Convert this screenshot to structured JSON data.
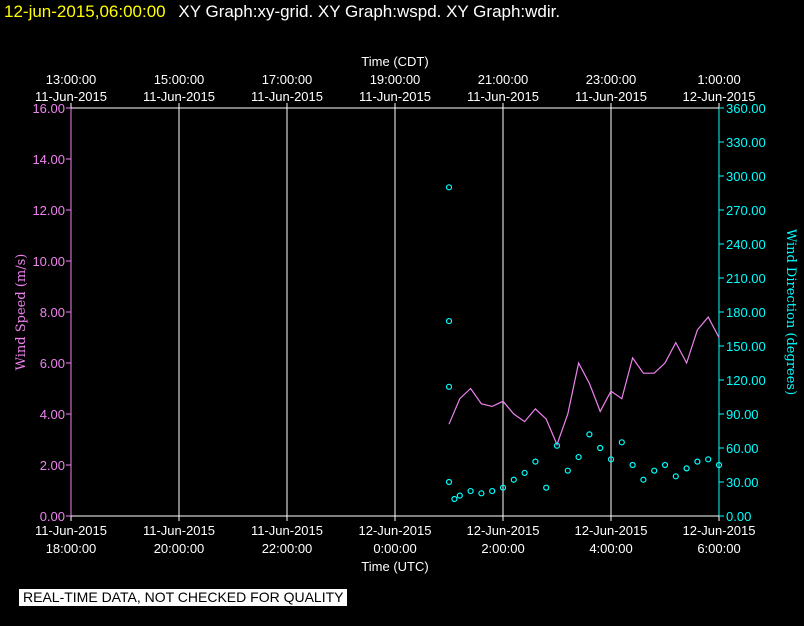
{
  "header": {
    "timestamp": "12-jun-2015,06:00:00",
    "graphs": "XY Graph:xy-grid.  XY Graph:wspd.  XY Graph:wdir."
  },
  "footer": {
    "quality_note": "REAL-TIME DATA, NOT CHECKED FOR QUALITY"
  },
  "colors": {
    "wspd": "#ee82ee",
    "wdir": "#00ffff",
    "grid": "#ffffff",
    "background": "#000000",
    "timestamp": "#ffff00"
  },
  "chart_data": {
    "type": "line",
    "top_axis": {
      "title": "Time (CDT)",
      "ticks": [
        {
          "time": "13:00:00",
          "date": "11-Jun-2015"
        },
        {
          "time": "15:00:00",
          "date": "11-Jun-2015"
        },
        {
          "time": "17:00:00",
          "date": "11-Jun-2015"
        },
        {
          "time": "19:00:00",
          "date": "11-Jun-2015"
        },
        {
          "time": "21:00:00",
          "date": "11-Jun-2015"
        },
        {
          "time": "23:00:00",
          "date": "11-Jun-2015"
        },
        {
          "time": "1:00:00",
          "date": "12-Jun-2015"
        }
      ]
    },
    "bottom_axis": {
      "title": "Time (UTC)",
      "range": [
        "2015-06-11 18:00",
        "2015-06-12 06:00"
      ],
      "ticks": [
        {
          "date": "11-Jun-2015",
          "time": "18:00:00"
        },
        {
          "date": "11-Jun-2015",
          "time": "20:00:00"
        },
        {
          "date": "11-Jun-2015",
          "time": "22:00:00"
        },
        {
          "date": "12-Jun-2015",
          "time": "0:00:00"
        },
        {
          "date": "12-Jun-2015",
          "time": "2:00:00"
        },
        {
          "date": "12-Jun-2015",
          "time": "4:00:00"
        },
        {
          "date": "12-Jun-2015",
          "time": "6:00:00"
        }
      ]
    },
    "left_axis": {
      "title": "Wind Speed (m/s)",
      "ylim": [
        0,
        16
      ],
      "ticks": [
        "0.00",
        "2.00",
        "4.00",
        "6.00",
        "8.00",
        "10.00",
        "12.00",
        "14.00",
        "16.00"
      ]
    },
    "right_axis": {
      "title": "Wind Direction (degrees)",
      "ylim": [
        0,
        360
      ],
      "ticks": [
        "0.00",
        "30.00",
        "60.00",
        "90.00",
        "120.00",
        "150.00",
        "180.00",
        "210.00",
        "240.00",
        "270.00",
        "300.00",
        "330.00",
        "360.00"
      ]
    },
    "grid": "vertical",
    "series": [
      {
        "name": "Wind Speed (m/s)",
        "style": "line",
        "axis": "left",
        "x": [
          "2015-06-12 01:00",
          "2015-06-12 01:12",
          "2015-06-12 01:24",
          "2015-06-12 01:36",
          "2015-06-12 01:48",
          "2015-06-12 02:00",
          "2015-06-12 02:12",
          "2015-06-12 02:24",
          "2015-06-12 02:36",
          "2015-06-12 02:48",
          "2015-06-12 03:00",
          "2015-06-12 03:12",
          "2015-06-12 03:24",
          "2015-06-12 03:36",
          "2015-06-12 03:48",
          "2015-06-12 04:00",
          "2015-06-12 04:12",
          "2015-06-12 04:24",
          "2015-06-12 04:36",
          "2015-06-12 04:48",
          "2015-06-12 05:00",
          "2015-06-12 05:12",
          "2015-06-12 05:24",
          "2015-06-12 05:36",
          "2015-06-12 05:48",
          "2015-06-12 06:00"
        ],
        "values": [
          3.6,
          4.6,
          5.0,
          4.4,
          4.3,
          4.5,
          4.0,
          3.7,
          4.2,
          3.8,
          2.8,
          4.0,
          6.0,
          5.2,
          4.1,
          4.9,
          4.6,
          6.2,
          5.6,
          5.6,
          6.0,
          6.8,
          6.0,
          7.3,
          7.8,
          7.0
        ]
      },
      {
        "name": "Wind Direction (degrees)",
        "style": "points",
        "axis": "right",
        "x": [
          "2015-06-12 01:00",
          "2015-06-12 01:06",
          "2015-06-12 01:12",
          "2015-06-12 01:24",
          "2015-06-12 01:36",
          "2015-06-12 01:48",
          "2015-06-12 02:00",
          "2015-06-12 02:12",
          "2015-06-12 02:24",
          "2015-06-12 02:36",
          "2015-06-12 02:48",
          "2015-06-12 03:00",
          "2015-06-12 03:12",
          "2015-06-12 03:24",
          "2015-06-12 03:36",
          "2015-06-12 03:48",
          "2015-06-12 04:00",
          "2015-06-12 04:12",
          "2015-06-12 04:24",
          "2015-06-12 04:36",
          "2015-06-12 04:48",
          "2015-06-12 05:00",
          "2015-06-12 05:12",
          "2015-06-12 05:24",
          "2015-06-12 05:36",
          "2015-06-12 05:48",
          "2015-06-12 06:00"
        ],
        "values": [
          30,
          15,
          18,
          22,
          20,
          22,
          25,
          32,
          38,
          48,
          25,
          62,
          40,
          52,
          72,
          60,
          50,
          65,
          45,
          32,
          40,
          45,
          35,
          42,
          48,
          50,
          45
        ]
      }
    ],
    "outliers": [
      {
        "x": "2015-06-12 01:00",
        "wdir": 290
      },
      {
        "x": "2015-06-12 01:00",
        "wdir": 172
      },
      {
        "x": "2015-06-12 01:00",
        "wdir": 114
      }
    ]
  }
}
